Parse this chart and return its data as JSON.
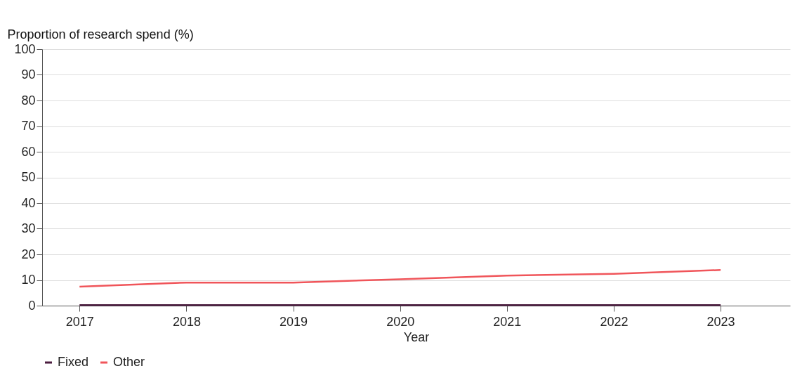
{
  "chart_data": {
    "type": "line",
    "ylabel": "Proportion of research spend (%)",
    "xlabel": "Year",
    "categories": [
      "2017",
      "2018",
      "2019",
      "2020",
      "2021",
      "2022",
      "2023"
    ],
    "series": [
      {
        "name": "Fixed",
        "color": "#4b1d3f",
        "values": [
          0.2,
          0.2,
          0.2,
          0.2,
          0.2,
          0.2,
          0.2
        ]
      },
      {
        "name": "Other",
        "color": "#f0555a",
        "values": [
          7.4,
          9.0,
          9.0,
          10.3,
          11.7,
          12.4,
          13.9
        ]
      }
    ],
    "ylim": [
      0,
      100
    ],
    "yticks": [
      0,
      10,
      20,
      30,
      40,
      50,
      60,
      70,
      80,
      90,
      100
    ],
    "grid": "y",
    "legend": "bottom",
    "marker": "none",
    "line_style": "solid"
  }
}
